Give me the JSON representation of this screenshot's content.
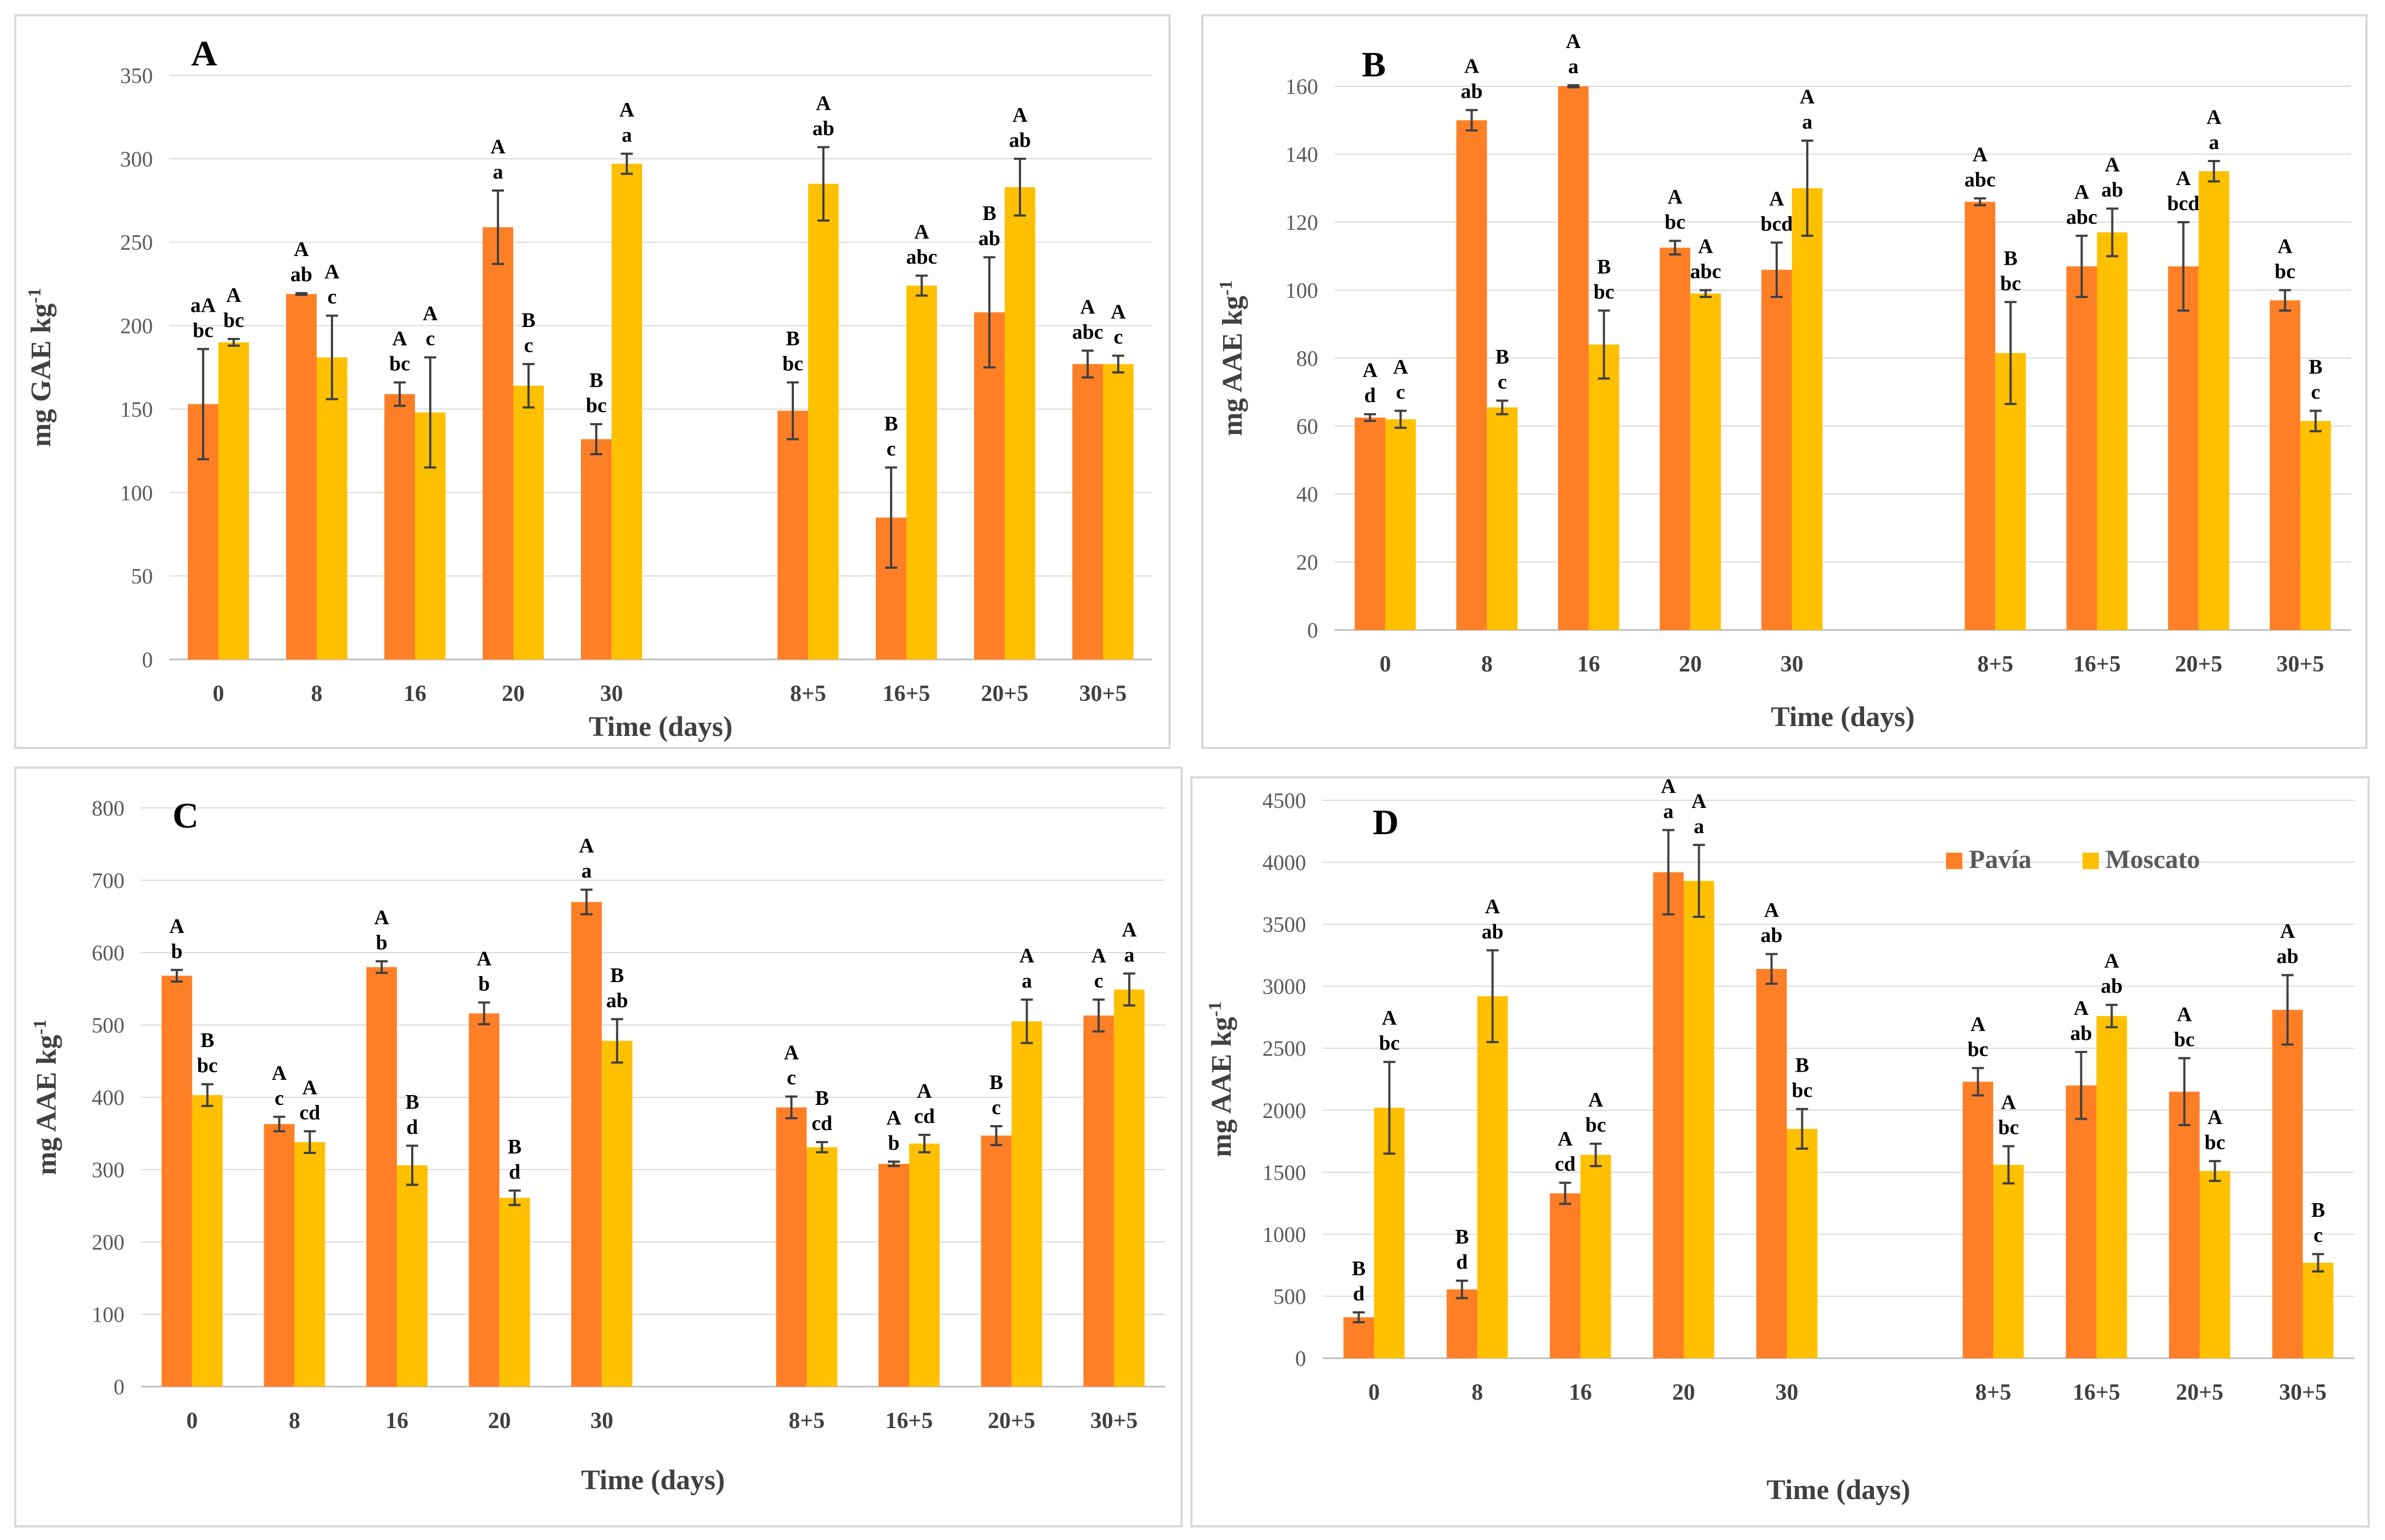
{
  "colors": {
    "pavia": "#FF7F27",
    "moscato": "#FFC000",
    "grid": "#d9d9d9",
    "axis": "#bfbfbf",
    "err": "#404040"
  },
  "legend": {
    "pavia": "Pavía",
    "moscato": "Moscato"
  },
  "chart_data": [
    {
      "type": "bar",
      "title": "A",
      "xlabel": "Time (days)",
      "ylabel": "mg GAE kg-1",
      "ylim": [
        0,
        350
      ],
      "yticks": [
        0,
        50,
        100,
        150,
        200,
        250,
        300,
        350
      ],
      "categories": [
        "0",
        "8",
        "16",
        "20",
        "30",
        "8+5",
        "16+5",
        "20+5",
        "30+5"
      ],
      "series": [
        {
          "name": "Pavía",
          "values": [
            153,
            219,
            159,
            259,
            132,
            149,
            85,
            208,
            177
          ],
          "errors": [
            33,
            0.5,
            7,
            22,
            9,
            17,
            30,
            33,
            8
          ],
          "labels": [
            [
              "aA",
              "bc"
            ],
            [
              "A",
              "ab"
            ],
            [
              "A",
              "bc"
            ],
            [
              "A",
              "a"
            ],
            [
              "B",
              "bc"
            ],
            [
              "B",
              "bc"
            ],
            [
              "B",
              "c"
            ],
            [
              "B",
              "ab"
            ],
            [
              "A",
              "abc"
            ]
          ]
        },
        {
          "name": "Moscato",
          "values": [
            190,
            181,
            148,
            164,
            297,
            285,
            224,
            283,
            177
          ],
          "errors": [
            2,
            25,
            33,
            13,
            6,
            22,
            6,
            17,
            5
          ],
          "labels": [
            [
              "A",
              "bc"
            ],
            [
              "A",
              "c"
            ],
            [
              "A",
              "c"
            ],
            [
              "B",
              "c"
            ],
            [
              "A",
              "a"
            ],
            [
              "A",
              "ab"
            ],
            [
              "A",
              "abc"
            ],
            [
              "A",
              "ab"
            ],
            [
              "A",
              "c"
            ]
          ]
        }
      ]
    },
    {
      "type": "bar",
      "title": "B",
      "xlabel": "Time (days)",
      "ylabel": "mg AAE kg-1",
      "ylim": [
        0,
        160
      ],
      "yticks": [
        0,
        20,
        40,
        60,
        80,
        100,
        120,
        140,
        160
      ],
      "categories": [
        "0",
        "8",
        "16",
        "20",
        "30",
        "8+5",
        "16+5",
        "20+5",
        "30+5"
      ],
      "series": [
        {
          "name": "Pavía",
          "values": [
            62.5,
            150,
            160,
            112.5,
            106,
            126,
            107,
            107,
            97
          ],
          "errors": [
            1,
            3,
            0.3,
            2,
            8,
            1,
            9,
            13,
            3
          ],
          "labels": [
            [
              "A",
              "d"
            ],
            [
              "A",
              "ab"
            ],
            [
              "A",
              "a"
            ],
            [
              "A",
              "bc"
            ],
            [
              "A",
              "bcd"
            ],
            [
              "A",
              "abc"
            ],
            [
              "A",
              "abc"
            ],
            [
              "A",
              "bcd"
            ],
            [
              "A",
              "bc"
            ]
          ]
        },
        {
          "name": "Moscato",
          "values": [
            62,
            65.5,
            84,
            99,
            130,
            81.5,
            117,
            135,
            61.5
          ],
          "errors": [
            2.5,
            2,
            10,
            1,
            14,
            15,
            7,
            3,
            3
          ],
          "labels": [
            [
              "A",
              "c"
            ],
            [
              "B",
              "c"
            ],
            [
              "B",
              "bc"
            ],
            [
              "A",
              "abc"
            ],
            [
              "A",
              "a"
            ],
            [
              "B",
              "bc"
            ],
            [
              "A",
              "ab"
            ],
            [
              "A",
              "a"
            ],
            [
              "B",
              "c"
            ]
          ]
        }
      ]
    },
    {
      "type": "bar",
      "title": "C",
      "xlabel": "Time (days)",
      "ylabel": "mg AAE kg-1",
      "ylim": [
        0,
        800
      ],
      "yticks": [
        0,
        100,
        200,
        300,
        400,
        500,
        600,
        700,
        800
      ],
      "categories": [
        "0",
        "8",
        "16",
        "20",
        "30",
        "8+5",
        "16+5",
        "20+5",
        "30+5"
      ],
      "series": [
        {
          "name": "Pavía",
          "values": [
            568,
            363,
            580,
            516,
            670,
            386,
            308,
            347,
            513
          ],
          "errors": [
            8,
            10,
            8,
            15,
            17,
            15,
            3,
            13,
            22
          ],
          "labels": [
            [
              "A",
              "b"
            ],
            [
              "A",
              "c"
            ],
            [
              "A",
              "b"
            ],
            [
              "A",
              "b"
            ],
            [
              "A",
              "a"
            ],
            [
              "A",
              "c"
            ],
            [
              "A",
              "b"
            ],
            [
              "B",
              "c"
            ],
            [
              "A",
              "c"
            ]
          ]
        },
        {
          "name": "Moscato",
          "values": [
            403,
            338,
            306,
            261,
            478,
            331,
            336,
            505,
            549
          ],
          "errors": [
            15,
            15,
            27,
            10,
            30,
            7,
            12,
            30,
            22
          ],
          "labels": [
            [
              "B",
              "bc"
            ],
            [
              "A",
              "cd"
            ],
            [
              "B",
              "d"
            ],
            [
              "B",
              "d"
            ],
            [
              "B",
              "ab"
            ],
            [
              "B",
              "cd"
            ],
            [
              "A",
              "cd"
            ],
            [
              "A",
              "a"
            ],
            [
              "A",
              "a"
            ]
          ]
        }
      ]
    },
    {
      "type": "bar",
      "title": "D",
      "xlabel": "Time (days)",
      "ylabel": "mg AAE kg-1",
      "ylim": [
        0,
        4500
      ],
      "yticks": [
        0,
        500,
        1000,
        1500,
        2000,
        2500,
        3000,
        3500,
        4000,
        4500
      ],
      "categories": [
        "0",
        "8",
        "16",
        "20",
        "30",
        "8+5",
        "16+5",
        "20+5",
        "30+5"
      ],
      "series": [
        {
          "name": "Pavía",
          "values": [
            330,
            555,
            1330,
            3920,
            3140,
            2230,
            2200,
            2150,
            2810
          ],
          "errors": [
            40,
            70,
            85,
            340,
            120,
            110,
            270,
            270,
            280
          ],
          "labels": [
            [
              "B",
              "d"
            ],
            [
              "B",
              "d"
            ],
            [
              "A",
              "cd"
            ],
            [
              "A",
              "a"
            ],
            [
              "A",
              "ab"
            ],
            [
              "A",
              "bc"
            ],
            [
              "A",
              "ab"
            ],
            [
              "A",
              "bc"
            ],
            [
              "A",
              "ab"
            ]
          ]
        },
        {
          "name": "Moscato",
          "values": [
            2020,
            2920,
            1640,
            3850,
            1850,
            1560,
            2760,
            1510,
            770
          ],
          "errors": [
            370,
            370,
            90,
            290,
            160,
            150,
            90,
            80,
            70
          ],
          "labels": [
            [
              "A",
              "bc"
            ],
            [
              "A",
              "ab"
            ],
            [
              "A",
              "bc"
            ],
            [
              "A",
              "a"
            ],
            [
              "B",
              "bc"
            ],
            [
              "A",
              "bc"
            ],
            [
              "A",
              "ab"
            ],
            [
              "A",
              "bc"
            ],
            [
              "B",
              "c"
            ]
          ]
        }
      ]
    }
  ]
}
